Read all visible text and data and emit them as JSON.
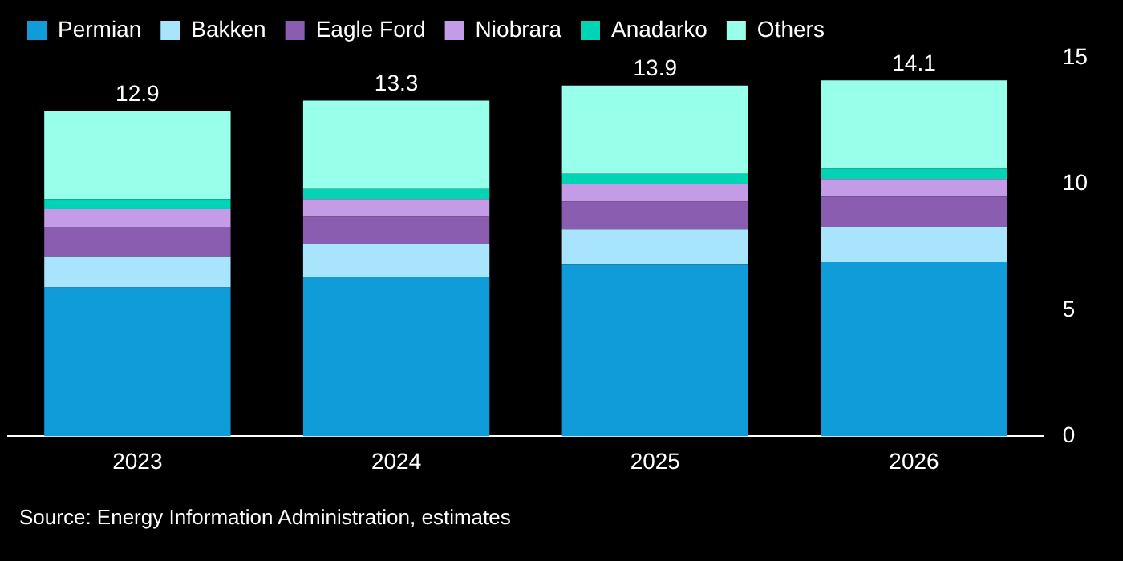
{
  "chart_data": {
    "type": "bar",
    "stacked": true,
    "categories": [
      "2023",
      "2024",
      "2025",
      "2026"
    ],
    "series": [
      {
        "name": "Permian",
        "color": "#0f9cd8",
        "values": [
          5.9,
          6.3,
          6.8,
          6.9
        ]
      },
      {
        "name": "Bakken",
        "color": "#a8e4fc",
        "values": [
          1.2,
          1.3,
          1.4,
          1.4
        ]
      },
      {
        "name": "Eagle Ford",
        "color": "#8a5db0",
        "values": [
          1.2,
          1.1,
          1.1,
          1.2
        ]
      },
      {
        "name": "Niobrara",
        "color": "#c39be6",
        "values": [
          0.7,
          0.7,
          0.7,
          0.7
        ]
      },
      {
        "name": "Anadarko",
        "color": "#00d4b4",
        "values": [
          0.4,
          0.4,
          0.4,
          0.4
        ]
      },
      {
        "name": "Others",
        "color": "#98ffea",
        "values": [
          3.5,
          3.5,
          3.5,
          3.5
        ]
      }
    ],
    "totals": [
      "12.9",
      "13.3",
      "13.9",
      "14.1"
    ],
    "ylim": [
      0,
      15
    ],
    "yticks": [
      0,
      5,
      10,
      15
    ],
    "legend": "top left",
    "annotations": [
      "Source: Energy Information Administration, estimates"
    ]
  }
}
